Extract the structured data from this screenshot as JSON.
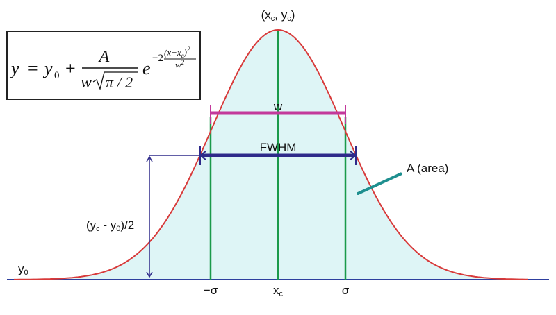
{
  "formula": {
    "y": "y",
    "equals": "=",
    "y0": "y",
    "y0_sub": "0",
    "plus": "+",
    "numerator": "A",
    "den_w": "w",
    "den_root": "π / 2",
    "e": "e",
    "exp_coef": "−2",
    "exp_num": "(x−x",
    "exp_num_sub": "c",
    "exp_num_end": ")",
    "exp_num_pow": "2",
    "exp_den": "w",
    "exp_den_pow": "2"
  },
  "labels": {
    "peak": [
      "(x",
      "c",
      ", y",
      "c",
      ")"
    ],
    "w": "w",
    "fwhm": "FWHM",
    "area": "A (area)",
    "half_height": [
      "(y",
      "c",
      " - y",
      "0",
      ")/2"
    ],
    "baseline": [
      "y",
      "0"
    ],
    "minus_sigma": "−σ",
    "center": [
      "x",
      "c"
    ],
    "sigma": "σ"
  }
}
